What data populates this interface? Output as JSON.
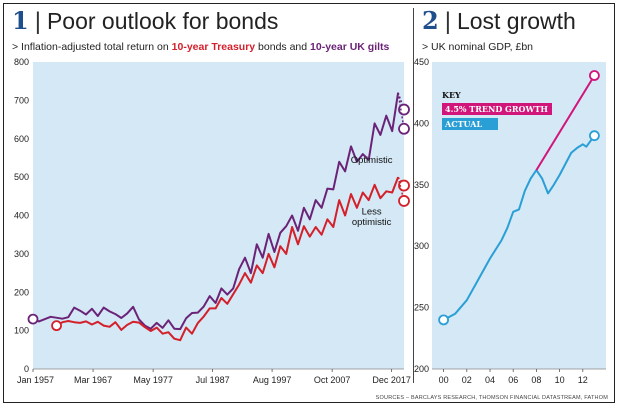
{
  "panel1": {
    "number": "1",
    "title": "Poor outlook for bonds",
    "subtitle_prefix": "> Inflation-adjusted total return on ",
    "subtitle_series1": "10-year Treasury",
    "subtitle_mid": " bonds and ",
    "subtitle_series2": "10-year UK gilts"
  },
  "panel2": {
    "number": "2",
    "title": "Lost growth",
    "subtitle": "> UK nominal GDP, £bn"
  },
  "sources": "SOURCES – BARCLAYS RESEARCH, THOMSON FINANCIAL DATASTREAM, FATHOM",
  "colors": {
    "plot_bg": "#d4e8f5",
    "treasury_red": "#d3202a",
    "gilts_purple": "#6b2377",
    "trend_magenta": "#d1157a",
    "actual_blue": "#2a9fd6",
    "title_blue": "#1f4e8c"
  },
  "chart_data": [
    {
      "type": "line",
      "ylim": [
        0,
        800
      ],
      "yticks": [
        0,
        100,
        200,
        300,
        400,
        500,
        600,
        700,
        800
      ],
      "xlim": [
        1957,
        2020
      ],
      "xtick_labels": [
        {
          "x": 1957.0,
          "label": "Jan 1957"
        },
        {
          "x": 1967.2,
          "label": "Mar 1967"
        },
        {
          "x": 1977.4,
          "label": "May 1977"
        },
        {
          "x": 1987.5,
          "label": "Jul 1987"
        },
        {
          "x": 1997.6,
          "label": "Aug 1997"
        },
        {
          "x": 2007.8,
          "label": "Oct 2007"
        },
        {
          "x": 2017.9,
          "label": "Dec 2017"
        }
      ],
      "annotations": [
        {
          "text": "Optimistic",
          "x": 2014.5,
          "y": 545
        },
        {
          "text": "Less",
          "x": 2014.5,
          "y": 410
        },
        {
          "text": "optimistic",
          "x": 2014.5,
          "y": 383
        }
      ],
      "series": [
        {
          "key": "gilts",
          "color": "#6b2377",
          "points": [
            [
              1957,
              130
            ],
            [
              1958,
              124
            ],
            [
              1960,
              136
            ],
            [
              1962,
              131
            ],
            [
              1963,
              135
            ],
            [
              1964,
              160
            ],
            [
              1965,
              152
            ],
            [
              1966,
              142
            ],
            [
              1967,
              157
            ],
            [
              1968,
              138
            ],
            [
              1969,
              160
            ],
            [
              1970,
              150
            ],
            [
              1971,
              143
            ],
            [
              1972,
              133
            ],
            [
              1973,
              145
            ],
            [
              1974,
              162
            ],
            [
              1975,
              129
            ],
            [
              1976,
              113
            ],
            [
              1977,
              105
            ],
            [
              1978,
              120
            ],
            [
              1979,
              107
            ],
            [
              1980,
              127
            ],
            [
              1981,
              105
            ],
            [
              1982,
              104
            ],
            [
              1983,
              132
            ],
            [
              1984,
              146
            ],
            [
              1985,
              147
            ],
            [
              1986,
              163
            ],
            [
              1987,
              190
            ],
            [
              1988,
              172
            ],
            [
              1989,
              210
            ],
            [
              1990,
              194
            ],
            [
              1991,
              210
            ],
            [
              1992,
              260
            ],
            [
              1993,
              290
            ],
            [
              1994,
              250
            ],
            [
              1995,
              325
            ],
            [
              1996,
              290
            ],
            [
              1997,
              352
            ],
            [
              1998,
              305
            ],
            [
              1999,
              355
            ],
            [
              2000,
              372
            ],
            [
              2001,
              400
            ],
            [
              2002,
              360
            ],
            [
              2003,
              420
            ],
            [
              2004,
              390
            ],
            [
              2005,
              440
            ],
            [
              2006,
              420
            ],
            [
              2007,
              470
            ],
            [
              2008,
              468
            ],
            [
              2009,
              540
            ],
            [
              2010,
              515
            ],
            [
              2011,
              580
            ],
            [
              2012,
              540
            ],
            [
              2013,
              560
            ],
            [
              2014,
              545
            ],
            [
              2015,
              640
            ],
            [
              2016,
              610
            ],
            [
              2017,
              660
            ],
            [
              2018,
              620
            ],
            [
              2019,
              720
            ]
          ]
        },
        {
          "key": "treasury",
          "color": "#d3202a",
          "points": [
            [
              1961,
              113
            ],
            [
              1962,
              122
            ],
            [
              1963,
              125
            ],
            [
              1964,
              122
            ],
            [
              1965,
              120
            ],
            [
              1966,
              124
            ],
            [
              1967,
              116
            ],
            [
              1968,
              123
            ],
            [
              1969,
              113
            ],
            [
              1970,
              110
            ],
            [
              1971,
              122
            ],
            [
              1972,
              102
            ],
            [
              1973,
              115
            ],
            [
              1974,
              123
            ],
            [
              1975,
              121
            ],
            [
              1976,
              109
            ],
            [
              1977,
              99
            ],
            [
              1978,
              108
            ],
            [
              1979,
              92
            ],
            [
              1980,
              96
            ],
            [
              1981,
              79
            ],
            [
              1982,
              75
            ],
            [
              1983,
              108
            ],
            [
              1984,
              92
            ],
            [
              1985,
              120
            ],
            [
              1986,
              137
            ],
            [
              1987,
              158
            ],
            [
              1988,
              158
            ],
            [
              1989,
              185
            ],
            [
              1990,
              170
            ],
            [
              1991,
              195
            ],
            [
              1992,
              220
            ],
            [
              1993,
              250
            ],
            [
              1994,
              225
            ],
            [
              1995,
              270
            ],
            [
              1996,
              250
            ],
            [
              1997,
              300
            ],
            [
              1998,
              265
            ],
            [
              1999,
              320
            ],
            [
              2000,
              300
            ],
            [
              2001,
              370
            ],
            [
              2002,
              325
            ],
            [
              2003,
              372
            ],
            [
              2004,
              345
            ],
            [
              2005,
              370
            ],
            [
              2006,
              350
            ],
            [
              2007,
              390
            ],
            [
              2008,
              370
            ],
            [
              2009,
              440
            ],
            [
              2010,
              400
            ],
            [
              2011,
              456
            ],
            [
              2012,
              420
            ],
            [
              2013,
              460
            ],
            [
              2014,
              440
            ],
            [
              2015,
              480
            ],
            [
              2016,
              445
            ],
            [
              2017,
              463
            ],
            [
              2018,
              460
            ],
            [
              2019,
              500
            ]
          ]
        }
      ],
      "projections": [
        {
          "series": "gilts",
          "scenario": "Optimistic",
          "from": [
            2019,
            720
          ],
          "to": [
            2020,
            676
          ]
        },
        {
          "series": "gilts",
          "scenario": "Less optimistic",
          "from": [
            2019,
            720
          ],
          "to": [
            2020,
            626
          ]
        },
        {
          "series": "treasury",
          "scenario": "Optimistic",
          "from": [
            2019,
            500
          ],
          "to": [
            2020,
            478
          ]
        },
        {
          "series": "treasury",
          "scenario": "Less optimistic",
          "from": [
            2019,
            500
          ],
          "to": [
            2020,
            438
          ]
        }
      ],
      "start_markers": [
        {
          "series": "gilts",
          "x": 1957,
          "y": 130
        },
        {
          "series": "treasury",
          "x": 1961,
          "y": 113
        }
      ]
    },
    {
      "type": "line",
      "xlim": [
        -1,
        14
      ],
      "ylim": [
        200,
        450
      ],
      "yticks": [
        200,
        250,
        300,
        350,
        400,
        450
      ],
      "xticks": [
        0,
        2,
        4,
        6,
        8,
        10,
        12
      ],
      "xtick_labels": [
        "00",
        "02",
        "04",
        "06",
        "08",
        "10",
        "12"
      ],
      "key": {
        "title": "KEY",
        "items": [
          {
            "label": "4.5% TREND GROWTH",
            "color": "#d1157a"
          },
          {
            "label": "ACTUAL",
            "color": "#2a9fd6"
          }
        ]
      },
      "series": [
        {
          "name": "ACTUAL",
          "color": "#2a9fd6",
          "points": [
            [
              0,
              240
            ],
            [
              1,
              245
            ],
            [
              2,
              256
            ],
            [
              3,
              273
            ],
            [
              4,
              290
            ],
            [
              5,
              305
            ],
            [
              5.5,
              315
            ],
            [
              6,
              328
            ],
            [
              6.5,
              330
            ],
            [
              7,
              345
            ],
            [
              7.5,
              355
            ],
            [
              8,
              362
            ],
            [
              8.5,
              355
            ],
            [
              9,
              343
            ],
            [
              9.5,
              350
            ],
            [
              10,
              358
            ],
            [
              11,
              376
            ],
            [
              11.5,
              380
            ],
            [
              12,
              383
            ],
            [
              12.3,
              381
            ],
            [
              13,
              390
            ]
          ]
        },
        {
          "name": "4.5% TREND GROWTH",
          "color": "#d1157a",
          "points": [
            [
              8,
              362
            ],
            [
              13,
              439
            ]
          ]
        }
      ],
      "markers": [
        {
          "series": "ACTUAL",
          "x": 0,
          "y": 240
        },
        {
          "series": "ACTUAL",
          "x": 13,
          "y": 390
        },
        {
          "series": "4.5% TREND GROWTH",
          "x": 13,
          "y": 439
        }
      ]
    }
  ]
}
